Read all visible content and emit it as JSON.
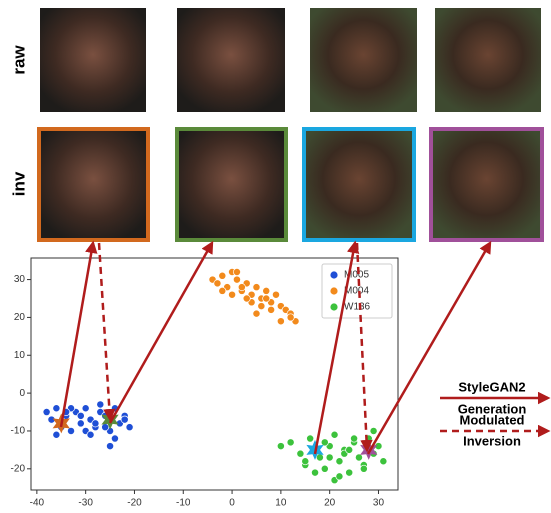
{
  "row_labels": [
    "raw",
    "inv"
  ],
  "generation_label": [
    "StyleGAN2",
    "Generation"
  ],
  "inversion_label": [
    "Modulated",
    "Inversion"
  ],
  "chart_data": {
    "type": "scatter",
    "xlim": [
      -41.2,
      34
    ],
    "ylim": [
      -25.6,
      35.7
    ],
    "xticks": [
      -40,
      -30,
      -20,
      -10,
      0,
      10,
      20,
      30
    ],
    "yticks": [
      -20,
      -10,
      0,
      10,
      20,
      30
    ],
    "legend": "upper right",
    "series": [
      {
        "name": "M005",
        "color": "#1f4fd6",
        "x": [
          -38,
          -37,
          -36,
          -35,
          -34,
          -33,
          -32,
          -31,
          -30,
          -29,
          -28,
          -27,
          -26,
          -25,
          -24,
          -23,
          -22,
          -21,
          -36,
          -33,
          -30,
          -27,
          -24,
          -31,
          -28,
          -34,
          -26,
          -29,
          -22,
          -25
        ],
        "values": [
          -5,
          -7,
          -4,
          -9,
          -6,
          -10,
          -5,
          -8,
          -4,
          -7,
          -9,
          -5,
          -6,
          -10,
          -4,
          -8,
          -6,
          -9,
          -11,
          -4,
          -10,
          -3,
          -12,
          -6,
          -8,
          -5,
          -9,
          -11,
          -7,
          -14
        ]
      },
      {
        "name": "M004",
        "color": "#f28a1c",
        "x": [
          -4,
          -3,
          -2,
          -1,
          0,
          1,
          2,
          3,
          4,
          5,
          6,
          7,
          8,
          9,
          10,
          11,
          12,
          13,
          -2,
          0,
          2,
          4,
          6,
          8,
          10,
          12,
          1,
          3,
          5,
          7
        ],
        "values": [
          30,
          29,
          31,
          28,
          32,
          30,
          27,
          29,
          26,
          28,
          25,
          27,
          24,
          26,
          23,
          22,
          21,
          19,
          27,
          26,
          28,
          24,
          23,
          22,
          19,
          20,
          32,
          25,
          21,
          25
        ]
      },
      {
        "name": "W136",
        "color": "#3cc23c",
        "x": [
          10,
          12,
          14,
          15,
          16,
          18,
          19,
          20,
          21,
          22,
          23,
          24,
          25,
          26,
          27,
          28,
          29,
          30,
          31,
          15,
          17,
          19,
          21,
          23,
          25,
          27,
          29,
          20,
          22,
          24
        ],
        "values": [
          -14,
          -13,
          -16,
          -19,
          -12,
          -17,
          -20,
          -14,
          -11,
          -18,
          -15,
          -21,
          -13,
          -17,
          -19,
          -12,
          -16,
          -14,
          -18,
          -18,
          -21,
          -13,
          -23,
          -16,
          -12,
          -20,
          -10,
          -17,
          -22,
          -15
        ]
      }
    ],
    "markers": [
      {
        "x": -35,
        "y": -8,
        "color": "#d2691e"
      },
      {
        "x": -25,
        "y": -7,
        "color": "#5a8a3a"
      },
      {
        "x": 17,
        "y": -15,
        "color": "#1aa7e0"
      },
      {
        "x": 28,
        "y": -15,
        "color": "#a0509a"
      }
    ]
  }
}
